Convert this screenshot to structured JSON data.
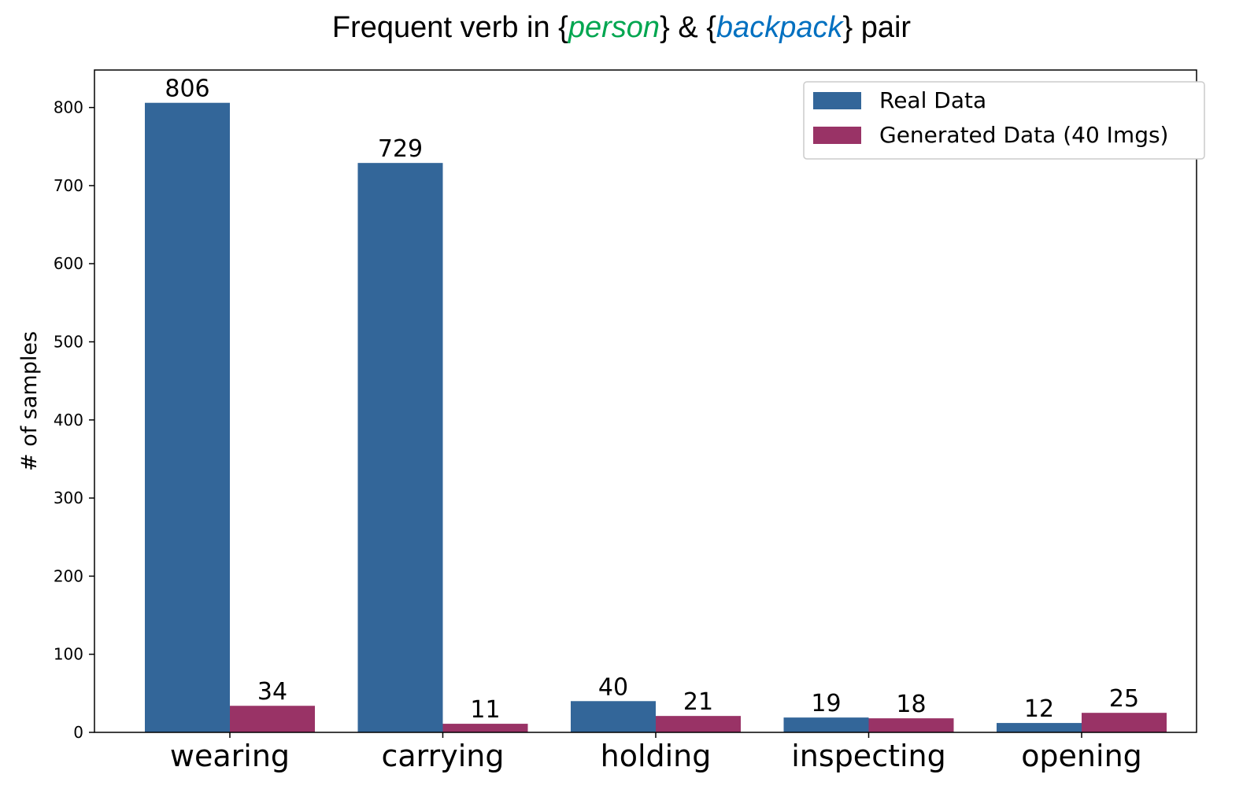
{
  "chart_data": {
    "type": "bar",
    "title_parts": [
      {
        "text": "Frequent verb in {",
        "color": "#000000",
        "italic": false
      },
      {
        "text": "person",
        "color": "#00a650",
        "italic": true
      },
      {
        "text": "} & {",
        "color": "#000000",
        "italic": false
      },
      {
        "text": "backpack",
        "color": "#0070c0",
        "italic": true
      },
      {
        "text": "} pair",
        "color": "#000000",
        "italic": false
      }
    ],
    "ylabel": "# of samples",
    "xlabel": "",
    "categories": [
      "wearing",
      "carrying",
      "holding",
      "inspecting",
      "opening"
    ],
    "series": [
      {
        "name": "Real Data",
        "color": "#336699",
        "values": [
          806,
          729,
          40,
          19,
          12
        ]
      },
      {
        "name": "Generated Data (40 Imgs)",
        "color": "#993366",
        "values": [
          34,
          11,
          21,
          18,
          25
        ]
      }
    ],
    "ylim": [
      0,
      848
    ],
    "yticks": [
      0,
      100,
      200,
      300,
      400,
      500,
      600,
      700,
      800
    ],
    "grid": false,
    "legend": "top-right"
  }
}
